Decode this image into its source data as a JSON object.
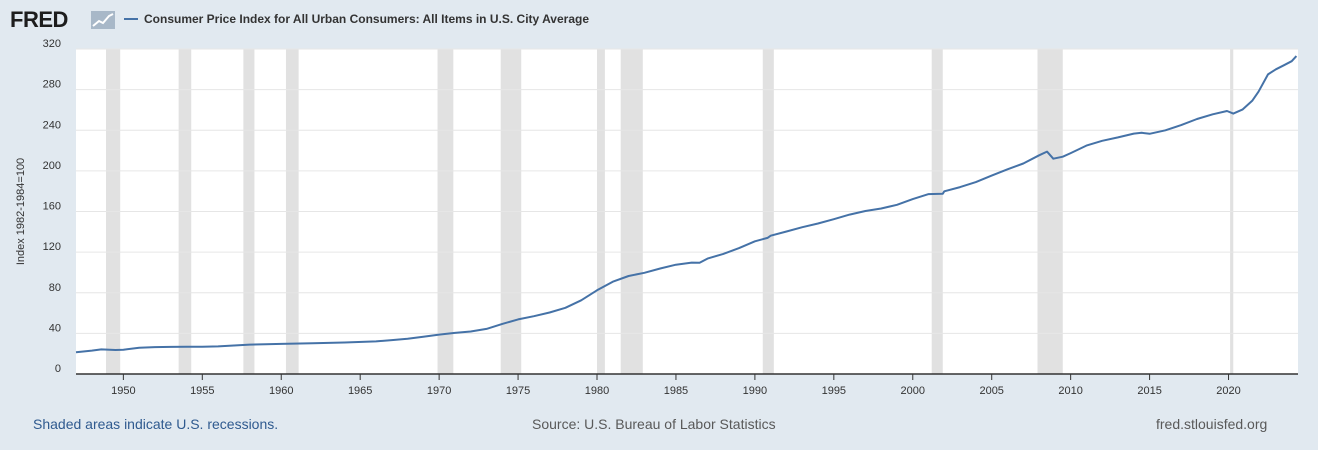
{
  "logo": {
    "text": "FRED"
  },
  "colors": {
    "line": "#4572a7",
    "recession": "#e1e1e1",
    "background": "#e1e9f0",
    "plot_bg": "#ffffff"
  },
  "footer": {
    "recession_note": "Shaded areas indicate U.S. recessions.",
    "source": "Source: U.S. Bureau of Labor Statistics",
    "site": "fred.stlouisfed.org"
  },
  "chart_data": {
    "type": "line",
    "title": "Consumer Price Index for All Urban Consumers: All Items in U.S. City Average",
    "ylabel": "Index 1982-1984=100",
    "xlabel": "",
    "xlim": [
      1947,
      2024.4
    ],
    "ylim": [
      0,
      320
    ],
    "yticks": [
      0,
      40,
      80,
      120,
      160,
      200,
      240,
      280,
      320
    ],
    "xticks": [
      1950,
      1955,
      1960,
      1965,
      1970,
      1975,
      1980,
      1985,
      1990,
      1995,
      2000,
      2005,
      2010,
      2015,
      2020
    ],
    "grid": true,
    "legend": "top-left",
    "recessions": [
      [
        1948.9,
        1949.8
      ],
      [
        1953.5,
        1954.3
      ],
      [
        1957.6,
        1958.3
      ],
      [
        1960.3,
        1961.1
      ],
      [
        1969.9,
        1970.9
      ],
      [
        1973.9,
        1975.2
      ],
      [
        1980.0,
        1980.5
      ],
      [
        1981.5,
        1982.9
      ],
      [
        1990.5,
        1991.2
      ],
      [
        2001.2,
        2001.9
      ],
      [
        2007.9,
        2009.5
      ],
      [
        2020.1,
        2020.3
      ]
    ],
    "series": [
      {
        "x": [
          1947.0,
          1948.0,
          1948.6,
          1949.5,
          1950.0,
          1951.0,
          1952.0,
          1953.0,
          1954.0,
          1955.0,
          1956.0,
          1957.0,
          1958.0,
          1959.0,
          1960.0,
          1962.0,
          1964.0,
          1966.0,
          1967.0,
          1968.0,
          1969.0,
          1970.0,
          1971.0,
          1972.0,
          1973.0,
          1974.0,
          1975.0,
          1976.0,
          1977.0,
          1978.0,
          1979.0,
          1980.0,
          1981.0,
          1982.0,
          1983.0,
          1984.0,
          1985.0,
          1986.0,
          1986.5,
          1987.0,
          1988.0,
          1989.0,
          1990.0,
          1990.8,
          1991.0,
          1992.0,
          1993.0,
          1994.0,
          1995.0,
          1996.0,
          1997.0,
          1998.0,
          1999.0,
          2000.0,
          2001.0,
          2001.9,
          2002.0,
          2003.0,
          2004.0,
          2005.0,
          2006.0,
          2007.0,
          2008.0,
          2008.5,
          2008.9,
          2009.5,
          2010.0,
          2011.0,
          2012.0,
          2013.0,
          2014.0,
          2014.5,
          2015.0,
          2016.0,
          2017.0,
          2018.0,
          2019.0,
          2019.9,
          2020.3,
          2020.9,
          2021.5,
          2021.9,
          2022.5,
          2023.0,
          2023.5,
          2024.0,
          2024.3
        ],
        "values": [
          21.5,
          23.0,
          24.2,
          23.6,
          23.9,
          25.9,
          26.5,
          26.7,
          26.9,
          26.8,
          27.2,
          28.1,
          28.9,
          29.2,
          29.6,
          30.2,
          31.0,
          32.1,
          33.4,
          34.8,
          36.7,
          38.8,
          40.5,
          41.8,
          44.4,
          49.3,
          53.8,
          56.9,
          60.6,
          65.2,
          72.6,
          82.4,
          90.9,
          96.5,
          99.6,
          103.9,
          107.6,
          109.7,
          109.5,
          113.6,
          118.3,
          124.0,
          130.7,
          134.0,
          136.2,
          140.3,
          144.5,
          148.2,
          152.4,
          156.9,
          160.5,
          163.0,
          166.6,
          172.2,
          177.1,
          177.5,
          179.9,
          184.0,
          188.9,
          195.3,
          201.6,
          207.3,
          215.3,
          219.0,
          212.0,
          214.0,
          217.5,
          224.9,
          229.6,
          233.0,
          236.7,
          237.5,
          236.5,
          240.0,
          245.1,
          251.1,
          255.7,
          259.0,
          256.4,
          260.5,
          269.0,
          278.0,
          295.0,
          300.0,
          304.0,
          308.0,
          313.0
        ]
      }
    ]
  }
}
